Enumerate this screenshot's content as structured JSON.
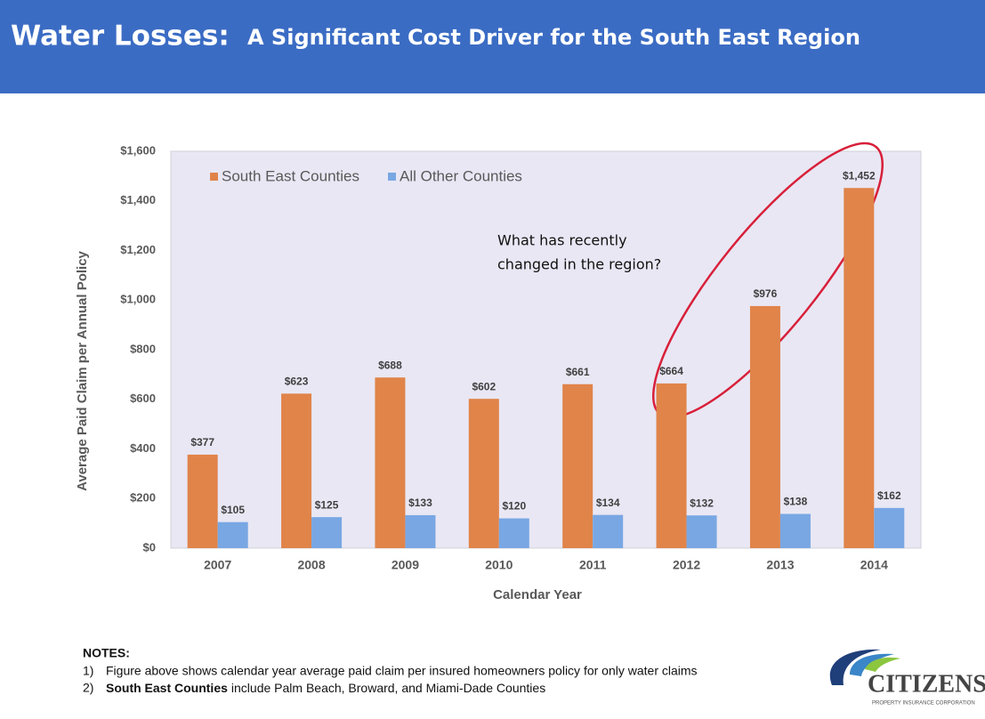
{
  "header": {
    "title_lead": "Water Losses:",
    "title_rest": "A Significant Cost Driver for the South East Region"
  },
  "chart_data": {
    "type": "bar",
    "y_label": "Average Paid Claim per Annual Policy",
    "x_label": "Calendar Year",
    "annotation": [
      "What has recently",
      "changed in the region?"
    ],
    "categories": [
      "2007",
      "2008",
      "2009",
      "2010",
      "2011",
      "2012",
      "2013",
      "2014"
    ],
    "series": [
      {
        "name": "South East Counties",
        "color": "#e0844a",
        "values": [
          377,
          623,
          688,
          602,
          661,
          664,
          976,
          1452
        ],
        "value_labels": [
          "$377",
          "$623",
          "$688",
          "$602",
          "$661",
          "$664",
          "$976",
          "$1,452"
        ]
      },
      {
        "name": "All Other Counties",
        "color": "#79a7e3",
        "values": [
          105,
          125,
          133,
          120,
          134,
          132,
          138,
          162
        ],
        "value_labels": [
          "$105",
          "$125",
          "$133",
          "$120",
          "$134",
          "$132",
          "$138",
          "$162"
        ]
      }
    ],
    "ylim": [
      0,
      1600
    ],
    "yticks": [
      {
        "value": 0,
        "label": "$0"
      },
      {
        "value": 200,
        "label": "$200"
      },
      {
        "value": 400,
        "label": "$400"
      },
      {
        "value": 600,
        "label": "$600"
      },
      {
        "value": 800,
        "label": "$800"
      },
      {
        "value": 1000,
        "label": "$1,000"
      },
      {
        "value": 1200,
        "label": "$1,200"
      },
      {
        "value": 1400,
        "label": "$1,400"
      },
      {
        "value": 1600,
        "label": "$1,600"
      }
    ],
    "grid": false,
    "legend": "top-left"
  },
  "notes": {
    "heading": "NOTES:",
    "items": [
      {
        "number": "1)",
        "text": "Figure above shows calendar year average paid claim per insured homeowners policy for only water claims"
      },
      {
        "number": "2)",
        "bold": "South East Counties",
        "text": "include Palm Beach, Broward, and Miami-Dade Counties"
      }
    ]
  },
  "logo": {
    "name": "CITIZENS",
    "tagline": "PROPERTY INSURANCE CORPORATION"
  }
}
